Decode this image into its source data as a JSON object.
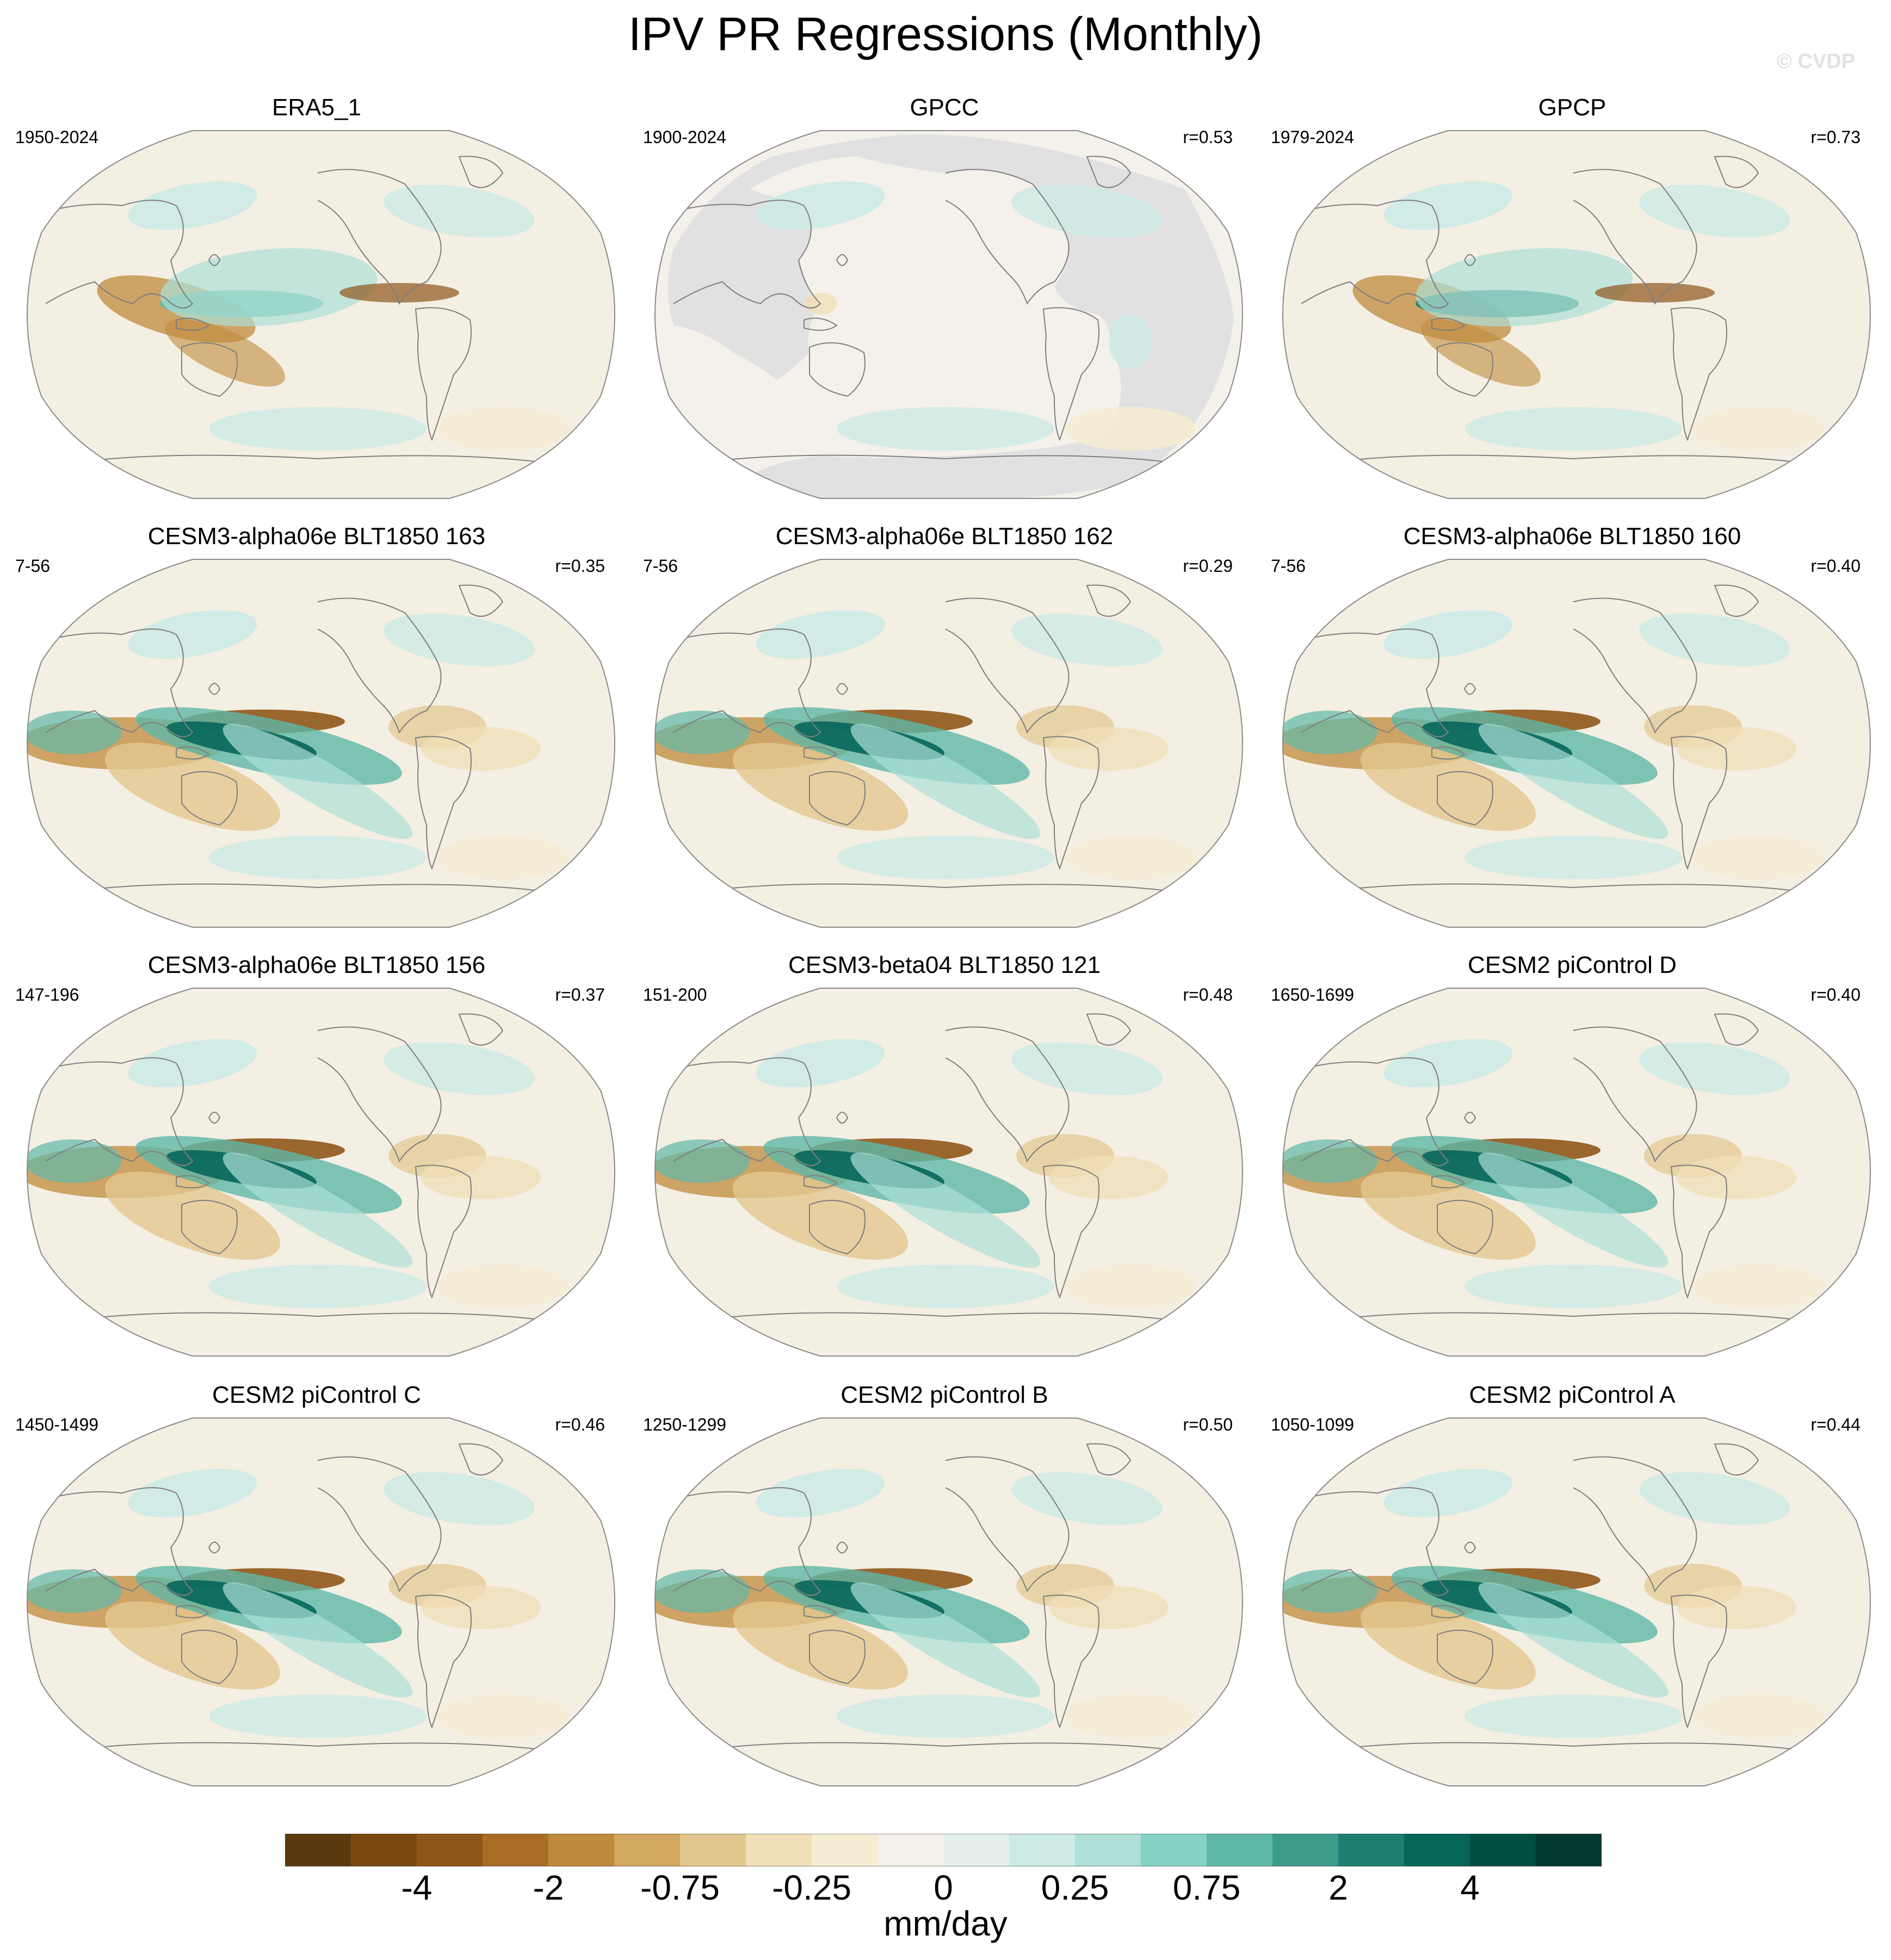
{
  "title": "IPV PR Regressions (Monthly)",
  "copyright": "© CVDP",
  "panels": [
    {
      "title": "ERA5_1",
      "period": "1950-2024",
      "r": "",
      "masked": false,
      "pattern": "era5"
    },
    {
      "title": "GPCC",
      "period": "1900-2024",
      "r": "r=0.53",
      "masked": true,
      "pattern": "gpcc"
    },
    {
      "title": "GPCP",
      "period": "1979-2024",
      "r": "r=0.73",
      "masked": false,
      "pattern": "gpcp"
    },
    {
      "title": "CESM3-alpha06e BLT1850 163",
      "period": "7-56",
      "r": "r=0.35",
      "masked": false,
      "pattern": "model"
    },
    {
      "title": "CESM3-alpha06e BLT1850 162",
      "period": "7-56",
      "r": "r=0.29",
      "masked": false,
      "pattern": "model"
    },
    {
      "title": "CESM3-alpha06e BLT1850 160",
      "period": "7-56",
      "r": "r=0.40",
      "masked": false,
      "pattern": "model"
    },
    {
      "title": "CESM3-alpha06e BLT1850 156",
      "period": "147-196",
      "r": "r=0.37",
      "masked": false,
      "pattern": "model"
    },
    {
      "title": "CESM3-beta04 BLT1850 121",
      "period": "151-200",
      "r": "r=0.48",
      "masked": false,
      "pattern": "model"
    },
    {
      "title": "CESM2 piControl D",
      "period": "1650-1699",
      "r": "r=0.40",
      "masked": false,
      "pattern": "model"
    },
    {
      "title": "CESM2 piControl C",
      "period": "1450-1499",
      "r": "r=0.46",
      "masked": false,
      "pattern": "model"
    },
    {
      "title": "CESM2 piControl B",
      "period": "1250-1299",
      "r": "r=0.50",
      "masked": false,
      "pattern": "model"
    },
    {
      "title": "CESM2 piControl A",
      "period": "1050-1099",
      "r": "r=0.44",
      "masked": false,
      "pattern": "model"
    }
  ],
  "colorbar": {
    "colors": [
      "#5b3a0e",
      "#7a4a12",
      "#8f561a",
      "#a86d27",
      "#c08a3c",
      "#d2a75f",
      "#e3c78e",
      "#f0dfb8",
      "#f6ecd4",
      "#f4f1ea",
      "#e6f1ef",
      "#cdeae5",
      "#ade0d7",
      "#86d2c4",
      "#5fb8a7",
      "#3d9b8a",
      "#1e7e72",
      "#07665a",
      "#014e43",
      "#003a31"
    ],
    "labels": [
      "-4",
      "-2",
      "-0.75",
      "-0.25",
      "0",
      "0.25",
      "0.75",
      "2",
      "4"
    ],
    "units": "mm/day"
  }
}
